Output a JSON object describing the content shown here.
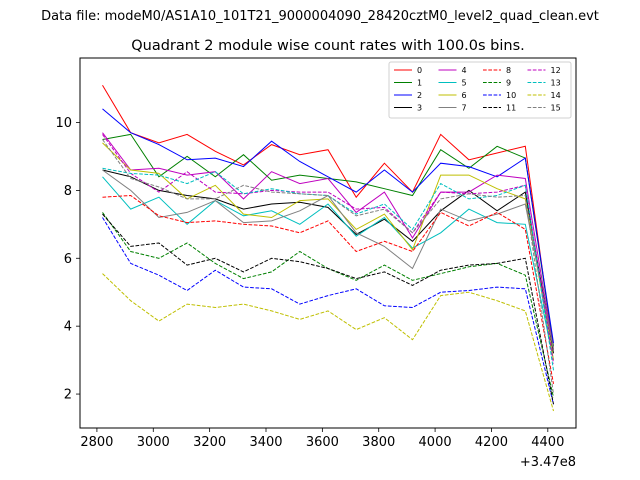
{
  "chart_data": {
    "type": "line",
    "suptitle": "Data file: modeM0/AS1A10_101T21_9000004090_28420cztM0_level2_quad_clean.evt",
    "title": "Quadrant 2 module wise count rates with 100.0s bins.",
    "xlabel": "",
    "ylabel": "",
    "x_offset_label": "+3.47e8",
    "xlim": [
      2740,
      4500
    ],
    "ylim": [
      1.0,
      11.9
    ],
    "xticks": [
      2800,
      3000,
      3200,
      3400,
      3600,
      3800,
      4000,
      4200,
      4400
    ],
    "xtick_labels": [
      "2800",
      "3000",
      "3200",
      "3400",
      "3600",
      "3800",
      "4000",
      "4200",
      "4400"
    ],
    "yticks": [
      2,
      4,
      6,
      8,
      10
    ],
    "ytick_labels": [
      "2",
      "4",
      "6",
      "8",
      "10"
    ],
    "grid": false,
    "legend_position": "top-right",
    "legend_columns": 4,
    "x": [
      2820,
      2920,
      3020,
      3120,
      3220,
      3320,
      3420,
      3520,
      3620,
      3720,
      3820,
      3920,
      4020,
      4120,
      4220,
      4320,
      4420
    ],
    "series": [
      {
        "name": "0",
        "color": "#ff0000",
        "dash": "solid",
        "values": [
          11.1,
          9.7,
          9.4,
          9.65,
          9.15,
          8.75,
          9.35,
          9.05,
          9.2,
          7.8,
          8.8,
          7.95,
          9.65,
          8.9,
          9.1,
          9.3,
          3.3
        ]
      },
      {
        "name": "1",
        "color": "#008000",
        "dash": "solid",
        "values": [
          9.5,
          9.65,
          8.4,
          9.0,
          8.4,
          9.05,
          8.3,
          8.45,
          8.35,
          8.25,
          8.05,
          7.85,
          9.2,
          8.65,
          9.3,
          8.95,
          3.4
        ]
      },
      {
        "name": "2",
        "color": "#0000ff",
        "dash": "solid",
        "values": [
          10.4,
          9.7,
          9.35,
          8.9,
          8.95,
          8.7,
          9.45,
          8.85,
          8.4,
          7.95,
          8.6,
          7.95,
          8.8,
          8.7,
          8.4,
          8.95,
          3.5
        ]
      },
      {
        "name": "3",
        "color": "#000000",
        "dash": "solid",
        "values": [
          8.6,
          8.4,
          8.0,
          7.85,
          7.75,
          7.45,
          7.6,
          7.65,
          7.5,
          6.7,
          7.15,
          6.5,
          7.4,
          8.0,
          7.4,
          7.95,
          3.2
        ]
      },
      {
        "name": "4",
        "color": "#bf00bf",
        "dash": "solid",
        "values": [
          9.7,
          8.6,
          8.65,
          8.45,
          8.55,
          7.75,
          8.55,
          8.2,
          8.35,
          7.35,
          7.95,
          6.6,
          7.95,
          7.95,
          8.45,
          8.35,
          3.3
        ]
      },
      {
        "name": "5",
        "color": "#00bfbf",
        "dash": "solid",
        "values": [
          8.4,
          7.45,
          7.8,
          7.0,
          7.7,
          7.25,
          7.4,
          7.0,
          7.6,
          6.65,
          7.2,
          6.3,
          6.75,
          7.45,
          7.05,
          7.0,
          3.0
        ]
      },
      {
        "name": "6",
        "color": "#bfbf00",
        "dash": "solid",
        "values": [
          9.4,
          8.6,
          8.5,
          7.75,
          8.15,
          7.3,
          7.2,
          7.7,
          7.75,
          6.85,
          7.3,
          6.25,
          8.45,
          8.45,
          8.05,
          7.75,
          3.0
        ]
      },
      {
        "name": "7",
        "color": "#808080",
        "dash": "solid",
        "values": [
          8.6,
          8.0,
          7.2,
          7.35,
          7.7,
          7.05,
          7.1,
          7.4,
          7.85,
          6.75,
          6.35,
          5.7,
          7.45,
          7.1,
          7.3,
          7.6,
          3.3
        ]
      },
      {
        "name": "8",
        "color": "#ff0000",
        "dash": "dashed",
        "values": [
          7.8,
          7.85,
          7.25,
          7.05,
          7.1,
          7.0,
          6.95,
          6.75,
          7.1,
          6.2,
          6.5,
          6.2,
          7.35,
          6.95,
          7.35,
          6.85,
          2.3
        ]
      },
      {
        "name": "9",
        "color": "#008000",
        "dash": "dashed",
        "values": [
          7.35,
          6.2,
          6.0,
          6.45,
          5.85,
          5.4,
          5.6,
          6.2,
          5.7,
          5.35,
          5.8,
          5.35,
          5.55,
          5.75,
          5.85,
          5.5,
          1.9
        ]
      },
      {
        "name": "10",
        "color": "#0000ff",
        "dash": "dashed",
        "values": [
          7.2,
          5.85,
          5.5,
          5.05,
          5.65,
          5.15,
          5.1,
          4.65,
          4.9,
          5.1,
          4.6,
          4.55,
          5.0,
          5.05,
          5.15,
          5.1,
          1.7
        ]
      },
      {
        "name": "11",
        "color": "#000000",
        "dash": "dashed",
        "values": [
          7.3,
          6.35,
          6.45,
          5.8,
          6.0,
          5.6,
          6.0,
          5.9,
          5.7,
          5.4,
          5.6,
          5.2,
          5.65,
          5.8,
          5.85,
          6.0,
          1.7
        ]
      },
      {
        "name": "12",
        "color": "#bf00bf",
        "dash": "dashed",
        "values": [
          9.65,
          8.5,
          7.95,
          8.55,
          7.95,
          7.9,
          8.0,
          7.95,
          7.95,
          7.45,
          7.5,
          6.75,
          7.95,
          7.9,
          7.95,
          8.15,
          2.9
        ]
      },
      {
        "name": "13",
        "color": "#00bfbf",
        "dash": "dashed",
        "values": [
          8.65,
          8.5,
          8.45,
          8.2,
          8.55,
          7.9,
          8.05,
          7.9,
          7.85,
          7.3,
          7.6,
          6.85,
          8.2,
          7.75,
          7.85,
          8.15,
          2.7
        ]
      },
      {
        "name": "14",
        "color": "#bfbf00",
        "dash": "dashed",
        "values": [
          5.55,
          4.75,
          4.15,
          4.65,
          4.55,
          4.65,
          4.45,
          4.2,
          4.45,
          3.9,
          4.25,
          3.6,
          4.9,
          5.0,
          4.75,
          4.45,
          1.5
        ]
      },
      {
        "name": "15",
        "color": "#808080",
        "dash": "dashed",
        "values": [
          9.5,
          8.35,
          8.1,
          7.75,
          7.75,
          8.15,
          7.95,
          7.9,
          7.85,
          7.25,
          7.45,
          6.75,
          7.75,
          7.9,
          7.8,
          7.85,
          2.0
        ]
      }
    ]
  }
}
